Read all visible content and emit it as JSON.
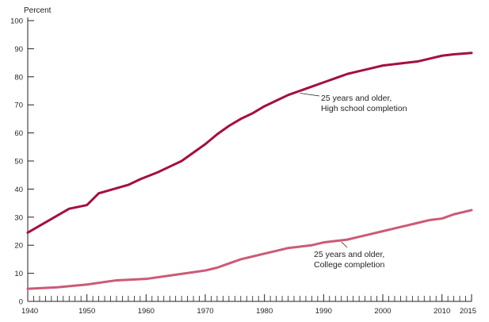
{
  "chart_data": {
    "type": "line",
    "title": "",
    "xlabel": "",
    "ylabel": "Percent",
    "xlim": [
      1940,
      2015
    ],
    "ylim": [
      0,
      100
    ],
    "grid": false,
    "legend": "none",
    "x_ticks": [
      "1940",
      "1950",
      "1960",
      "1970",
      "1980",
      "1990",
      "2000",
      "2010",
      "2015"
    ],
    "y_ticks": [
      "0",
      "10",
      "20",
      "30",
      "40",
      "50",
      "60",
      "70",
      "80",
      "90",
      "100"
    ],
    "series": [
      {
        "name": "25 years and older, High school completion",
        "color": "#a50f3f",
        "x": [
          1940,
          1947,
          1950,
          1952,
          1957,
          1959,
          1962,
          1964,
          1966,
          1968,
          1970,
          1972,
          1974,
          1976,
          1978,
          1980,
          1982,
          1984,
          1986,
          1988,
          1990,
          1992,
          1994,
          1996,
          1998,
          2000,
          2002,
          2004,
          2006,
          2008,
          2010,
          2012,
          2015
        ],
        "values": [
          24.5,
          33.0,
          34.3,
          38.5,
          41.5,
          43.5,
          46.0,
          48.0,
          50.0,
          53.0,
          56.0,
          59.5,
          62.5,
          65.0,
          67.0,
          69.5,
          71.5,
          73.5,
          75.0,
          76.5,
          78.0,
          79.5,
          81.0,
          82.0,
          83.0,
          84.0,
          84.5,
          85.0,
          85.5,
          86.5,
          87.5,
          88.0,
          88.5
        ]
      },
      {
        "name": "25 years and older, College completion",
        "color": "#cc5a77",
        "x": [
          1940,
          1945,
          1950,
          1955,
          1960,
          1965,
          1970,
          1972,
          1974,
          1976,
          1978,
          1980,
          1982,
          1984,
          1986,
          1988,
          1990,
          1992,
          1994,
          1996,
          1998,
          2000,
          2002,
          2004,
          2006,
          2008,
          2010,
          2012,
          2015
        ],
        "values": [
          4.5,
          5.0,
          6.0,
          7.5,
          8.0,
          9.5,
          11.0,
          12.0,
          13.5,
          15.0,
          16.0,
          17.0,
          18.0,
          19.0,
          19.5,
          20.0,
          21.0,
          21.5,
          22.0,
          23.0,
          24.0,
          25.0,
          26.0,
          27.0,
          28.0,
          29.0,
          29.5,
          31.0,
          32.5
        ]
      }
    ],
    "annotations": [
      {
        "line1": "25 years and older,",
        "line2": "High school completion"
      },
      {
        "line1": "25 years and older,",
        "line2": "College completion"
      }
    ]
  }
}
